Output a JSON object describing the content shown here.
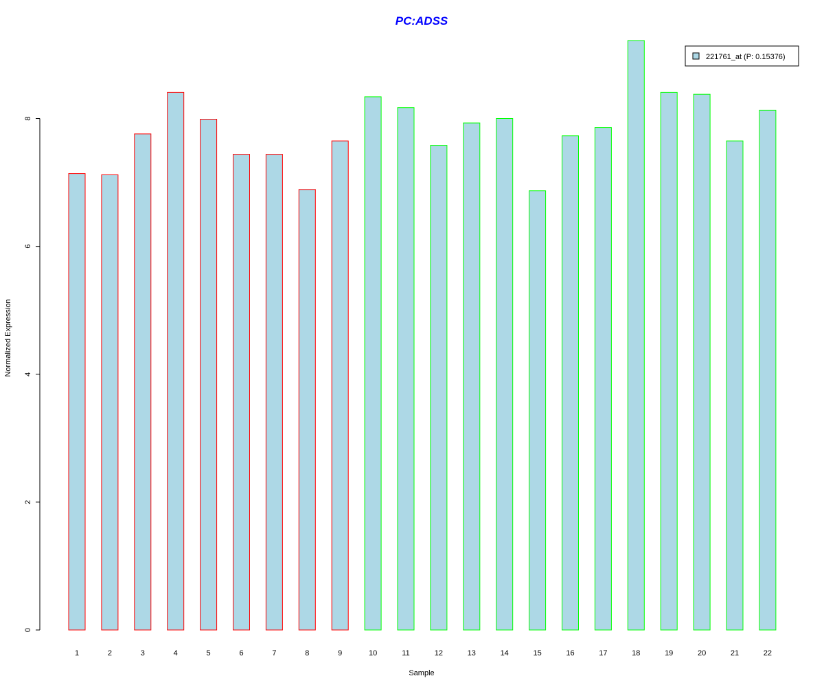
{
  "chart_data": {
    "type": "bar",
    "title": "PC:ADSS",
    "xlabel": "Sample",
    "ylabel": "Normalized Expression",
    "categories": [
      "1",
      "2",
      "3",
      "4",
      "5",
      "6",
      "7",
      "8",
      "9",
      "10",
      "11",
      "12",
      "13",
      "14",
      "15",
      "16",
      "17",
      "18",
      "19",
      "20",
      "21",
      "22"
    ],
    "series": [
      {
        "name": "221761_at (P: 0.15376)",
        "values": [
          7.14,
          7.12,
          7.76,
          8.41,
          7.99,
          7.44,
          7.44,
          6.89,
          7.65,
          8.34,
          8.17,
          7.58,
          7.93,
          8.0,
          6.87,
          7.73,
          7.86,
          9.22,
          8.41,
          8.38,
          7.65,
          8.13
        ]
      }
    ],
    "group_border_colors": [
      "#ff0000",
      "#ff0000",
      "#ff0000",
      "#ff0000",
      "#ff0000",
      "#ff0000",
      "#ff0000",
      "#ff0000",
      "#ff0000",
      "#00ff00",
      "#00ff00",
      "#00ff00",
      "#00ff00",
      "#00ff00",
      "#00ff00",
      "#00ff00",
      "#00ff00",
      "#00ff00",
      "#00ff00",
      "#00ff00",
      "#00ff00",
      "#00ff00"
    ],
    "ylim": [
      0,
      9.22
    ],
    "yticks": [
      0,
      2,
      4,
      6,
      8
    ],
    "grid": false,
    "legend_position": "top-right",
    "colors": {
      "bar_fill": "#add8e6",
      "title": "#0000ff",
      "axis": "#000000"
    }
  }
}
